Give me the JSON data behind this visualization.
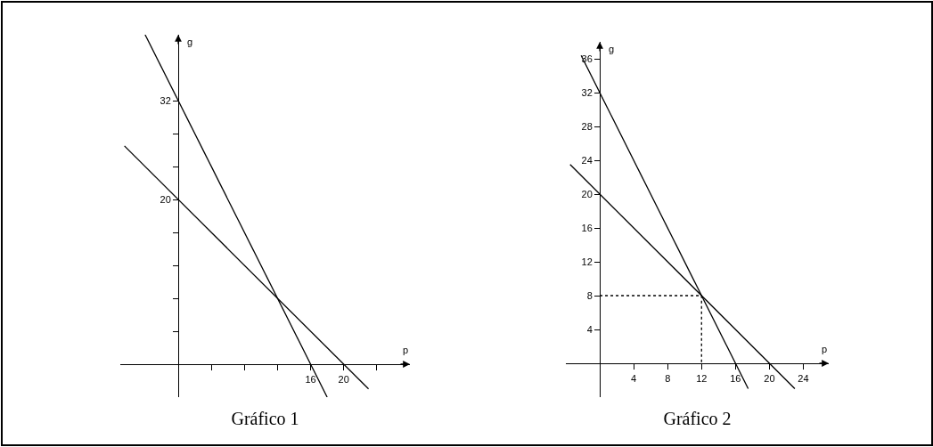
{
  "chart_data": [
    {
      "type": "line",
      "title": "Gráfico 1",
      "xlabel": "p",
      "ylabel": "g",
      "xlim": [
        -7,
        28
      ],
      "ylim": [
        -4,
        40
      ],
      "xticks": [
        {
          "value": 4,
          "label": null
        },
        {
          "value": 8,
          "label": null
        },
        {
          "value": 12,
          "label": null
        },
        16,
        20,
        {
          "value": 24,
          "label": null
        }
      ],
      "yticks": [
        {
          "value": 4,
          "label": null
        },
        {
          "value": 8,
          "label": null
        },
        {
          "value": 12,
          "label": null
        },
        {
          "value": 16,
          "label": null
        },
        20,
        {
          "value": 24,
          "label": null
        },
        {
          "value": 28,
          "label": null
        },
        32
      ],
      "series": [
        {
          "color": "#000000",
          "x": [
            -4,
            18
          ],
          "values": [
            40,
            -4
          ]
        },
        {
          "color": "#000000",
          "x": [
            -6.5,
            23
          ],
          "values": [
            26.5,
            -3
          ]
        }
      ],
      "grid": false,
      "marker": "none",
      "line_style": "solid"
    },
    {
      "type": "line",
      "title": "Gráfico 2",
      "xlabel": "p",
      "ylabel": "g",
      "xlim": [
        -4,
        27
      ],
      "ylim": [
        -4,
        38
      ],
      "xticks": [
        4,
        8,
        12,
        16,
        20,
        24
      ],
      "yticks": [
        4,
        8,
        12,
        16,
        20,
        24,
        28,
        32,
        36
      ],
      "series": [
        {
          "color": "#000000",
          "x": [
            -2.2,
            17.5
          ],
          "values": [
            36.4,
            -3
          ]
        },
        {
          "color": "#000000",
          "x": [
            -3.5,
            23
          ],
          "values": [
            23.5,
            -3
          ]
        },
        {
          "color": "#000000",
          "x": [
            0,
            12,
            12
          ],
          "values": [
            8,
            8,
            0
          ],
          "line_style": "dotted"
        }
      ],
      "grid": false,
      "marker": "none",
      "line_style": "solid"
    }
  ]
}
